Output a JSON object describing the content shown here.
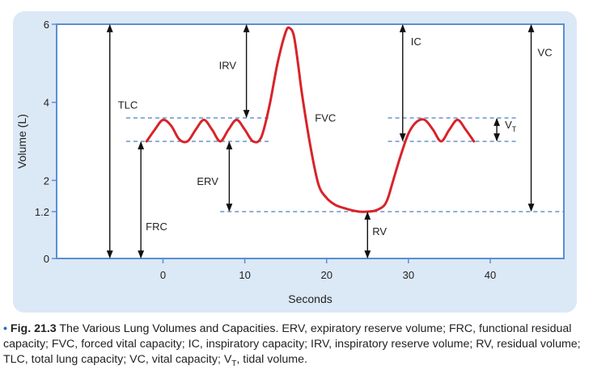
{
  "chart_data": {
    "type": "line",
    "xlabel": "Seconds",
    "ylabel": "Volume (L)",
    "xlim": [
      -13,
      49
    ],
    "ylim": [
      0,
      6
    ],
    "x_ticks": [
      0,
      10,
      20,
      30,
      40
    ],
    "y_ticks": [
      0,
      1.2,
      2,
      4,
      6
    ],
    "tick_labels_x": [
      "0",
      "10",
      "20",
      "30",
      "40"
    ],
    "tick_labels_y": [
      "0",
      "1.2",
      "2",
      "4",
      "6"
    ],
    "line_color": "#d8232a",
    "arrow_color": "#111111",
    "dash_color": "#4a7fc1",
    "series": [
      {
        "x": [
          -2,
          -1,
          0,
          1,
          2,
          3,
          4,
          5,
          6,
          7,
          8,
          9,
          10,
          11,
          12,
          13,
          14,
          15,
          15.5,
          16,
          16.5,
          17,
          18,
          19,
          20,
          21,
          22,
          23,
          24,
          25,
          26,
          27,
          27.5,
          28,
          29,
          30,
          31,
          32,
          33,
          34,
          35,
          36,
          37,
          38
        ],
        "y": [
          3.0,
          3.3,
          3.55,
          3.4,
          3.05,
          3.0,
          3.3,
          3.55,
          3.3,
          3.0,
          3.3,
          3.55,
          3.3,
          3.0,
          3.1,
          3.9,
          5.0,
          5.8,
          5.9,
          5.7,
          5.0,
          4.2,
          2.9,
          1.9,
          1.55,
          1.38,
          1.3,
          1.24,
          1.2,
          1.2,
          1.23,
          1.35,
          1.55,
          1.9,
          2.6,
          3.2,
          3.5,
          3.55,
          3.3,
          3.0,
          3.3,
          3.55,
          3.3,
          3.0
        ]
      }
    ],
    "dashed_levels": [
      {
        "y": 3.6,
        "x": [
          -4.5,
          13
        ]
      },
      {
        "y": 3.0,
        "x": [
          -4.5,
          13
        ]
      },
      {
        "y": 3.6,
        "x": [
          27.5,
          43.5
        ]
      },
      {
        "y": 3.0,
        "x": [
          27.5,
          43.5
        ]
      },
      {
        "y": 1.2,
        "x": [
          7,
          49
        ]
      }
    ],
    "measures": [
      {
        "label": "TLC",
        "x": -6.5,
        "y": [
          0,
          6
        ]
      },
      {
        "label": "FRC",
        "x": -2.7,
        "y": [
          0,
          3.0
        ]
      },
      {
        "label": "IRV",
        "x": 10.2,
        "y": [
          3.6,
          6
        ]
      },
      {
        "label": "ERV",
        "x": 8.1,
        "y": [
          1.2,
          3.0
        ]
      },
      {
        "label": "FVC",
        "x": 16,
        "y": [
          1.2,
          6
        ]
      },
      {
        "label": "IC",
        "x": 29.3,
        "y": [
          3.0,
          6
        ]
      },
      {
        "label": "RV",
        "x": 25,
        "y": [
          0,
          1.2
        ]
      },
      {
        "label": "VC",
        "x": 45,
        "y": [
          1.2,
          6
        ]
      },
      {
        "label": "V",
        "sub": "T",
        "x": 40.8,
        "y": [
          3.0,
          3.6
        ]
      }
    ]
  },
  "caption": {
    "bullet": "•",
    "fig": "Fig. 21.3",
    "title": "The Various Lung Volumes and Capacities.",
    "text_a": "ERV, expiratory reserve volume; FRC, functional residual capacity; FVC, forced vital capacity; IC, inspiratory capacity; IRV, inspiratory reserve volume; RV, residual volume; TLC, total lung capacity; VC, vital capacity; V",
    "text_sub": "T",
    "text_b": ", tidal volume."
  }
}
